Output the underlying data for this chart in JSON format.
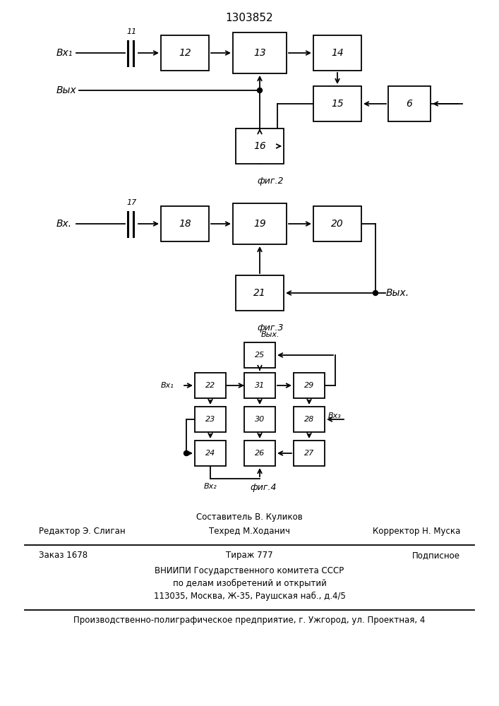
{
  "title": "1303852",
  "bg_color": "#ffffff",
  "footer": {
    "composer": "Составитель В. Куликов",
    "editor": "Редактор Э. Слиган",
    "techred": "Техред М.Ходанич",
    "corrector": "Корректор Н. Муска",
    "order": "Заказ 1678",
    "circulation": "Тираж 777",
    "subscription": "Подписное",
    "org_line1": "ВНИИПИ Государственного комитета СССР",
    "org_line2": "по делам изобретений и открытий",
    "org_line3": "113035, Москва, Ж-35, Раушская наб., д.4/5",
    "production": "Производственно-полиграфическое предприятие, г. Ужгород, ул. Проектная, 4"
  }
}
